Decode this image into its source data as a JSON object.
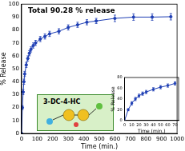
{
  "chart_data": [
    {
      "type": "line",
      "title": "Total 90.28 % release",
      "x_label": "Time (min.)",
      "y_label": "% Release",
      "x": [
        0,
        5,
        10,
        15,
        20,
        30,
        40,
        50,
        60,
        75,
        90,
        120,
        150,
        180,
        240,
        300,
        360,
        420,
        480,
        600,
        720,
        840,
        960
      ],
      "series": [
        {
          "color": "#1f3fb4",
          "marker": "circle",
          "values": [
            0,
            20,
            32,
            40,
            46,
            53,
            58,
            62,
            65,
            68,
            70,
            73,
            75,
            77,
            79,
            82,
            84,
            86,
            87,
            89,
            90,
            90,
            90.28
          ],
          "errors": [
            0,
            1.5,
            2,
            2,
            2,
            2,
            2,
            2,
            2,
            2,
            2,
            2,
            2,
            2,
            2,
            2,
            2,
            2,
            2,
            2.5,
            2.5,
            2.5,
            2.5
          ]
        }
      ],
      "xlim": [
        0,
        1000
      ],
      "xticks": [
        0,
        100,
        200,
        300,
        400,
        500,
        600,
        700,
        800,
        900,
        1000
      ],
      "ylim": [
        0,
        100
      ],
      "yticks": [
        0,
        10,
        20,
        30,
        40,
        50,
        60,
        70,
        80,
        90,
        100
      ],
      "grid": false
    },
    {
      "type": "line",
      "x_label": "Time (min.)",
      "y_label": "% Release",
      "x": [
        0,
        5,
        10,
        15,
        20,
        25,
        30,
        40,
        50,
        60,
        70
      ],
      "series": [
        {
          "color": "#1f3fb4",
          "marker": "circle",
          "values": [
            0,
            20,
            32,
            40,
            46,
            50,
            53,
            58,
            62,
            65,
            69
          ],
          "errors": [
            0,
            2,
            3,
            3,
            3,
            3,
            3,
            3,
            3,
            3,
            3
          ]
        }
      ],
      "xlim": [
        0,
        75
      ],
      "xticks": [
        0,
        10,
        20,
        30,
        40,
        50,
        60,
        70
      ],
      "ylim": [
        0,
        80
      ],
      "yticks": [
        0,
        20,
        40,
        60,
        80
      ],
      "grid": false
    }
  ],
  "diagram": {
    "label": "3-DC-4-HC"
  }
}
